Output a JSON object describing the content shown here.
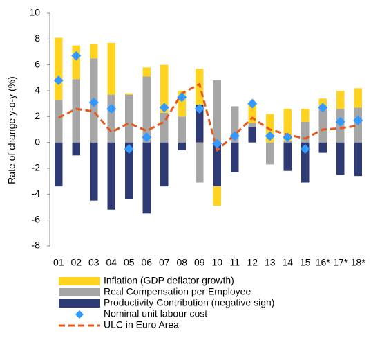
{
  "chart_data": {
    "type": "bar",
    "y_label": "Rate of change y-o-y (%)",
    "categories": [
      "01",
      "02",
      "03",
      "04",
      "05",
      "06",
      "07",
      "08",
      "09",
      "10",
      "11",
      "12",
      "13",
      "14",
      "15",
      "16*",
      "17*",
      "18*"
    ],
    "series": [
      {
        "name": "Inflation (GDP deflator growth)",
        "type": "bar",
        "color": "#ffd320",
        "values": [
          4.8,
          2.6,
          1.1,
          4.0,
          0.1,
          0.7,
          3.7,
          2.0,
          2.8,
          -1.5,
          0,
          1.5,
          2.2,
          2.5,
          1.0,
          0.8,
          1.4,
          1.5
        ]
      },
      {
        "name": "Real Compensation per Employee",
        "type": "bar",
        "color": "#a6a6a6",
        "values": [
          3.3,
          4.9,
          6.5,
          3.7,
          3.7,
          5.1,
          2.3,
          2.0,
          -3.1,
          4.8,
          2.8,
          0.3,
          -1.7,
          0.1,
          1.6,
          2.6,
          2.6,
          2.7
        ]
      },
      {
        "name": "Productivity Contribution (negative sign)",
        "type": "bar",
        "color": "#2e3a74",
        "values": [
          -3.4,
          -1.0,
          -4.5,
          -5.2,
          -4.4,
          -5.5,
          -3.4,
          -0.6,
          2.9,
          -3.4,
          -2.3,
          1.2,
          0,
          -2.2,
          -3.1,
          -0.8,
          -2.5,
          -2.6
        ]
      },
      {
        "name": "Nominal unit labour cost",
        "type": "scatter",
        "color": "#3399ff",
        "values": [
          4.8,
          6.7,
          3.1,
          2.6,
          -0.5,
          0.4,
          2.7,
          3.5,
          2.6,
          -0.1,
          0.5,
          3.0,
          0.5,
          0.4,
          -0.5,
          2.7,
          1.6,
          1.7
        ]
      },
      {
        "name": "ULC in Euro Area",
        "type": "line",
        "color": "#e8581c",
        "values": [
          1.9,
          2.6,
          2.4,
          0.8,
          1.5,
          0.9,
          1.6,
          3.8,
          4.5,
          -0.6,
          0.6,
          1.9,
          1.0,
          0.6,
          0.3,
          1.0,
          1.1,
          1.3
        ]
      }
    ],
    "ylim": [
      -8,
      10
    ],
    "yticks": [
      -8,
      -6,
      -4,
      -2,
      0,
      2,
      4,
      6,
      8,
      10
    ]
  }
}
